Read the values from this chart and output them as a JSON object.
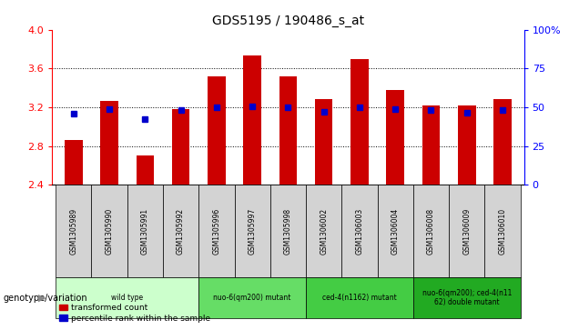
{
  "title": "GDS5195 / 190486_s_at",
  "samples": [
    "GSM1305989",
    "GSM1305990",
    "GSM1305991",
    "GSM1305992",
    "GSM1305996",
    "GSM1305997",
    "GSM1305998",
    "GSM1306002",
    "GSM1306003",
    "GSM1306004",
    "GSM1306008",
    "GSM1306009",
    "GSM1306010"
  ],
  "red_values": [
    2.86,
    3.27,
    2.7,
    3.18,
    3.52,
    3.73,
    3.52,
    3.28,
    3.7,
    3.38,
    3.22,
    3.22,
    3.28
  ],
  "blue_values": [
    3.13,
    3.18,
    3.08,
    3.17,
    3.2,
    3.21,
    3.2,
    3.15,
    3.2,
    3.18,
    3.17,
    3.14,
    3.17
  ],
  "ylim": [
    2.4,
    4.0
  ],
  "y2lim": [
    0,
    100
  ],
  "yticks": [
    2.4,
    2.8,
    3.2,
    3.6,
    4.0
  ],
  "y2ticks": [
    0,
    25,
    50,
    75,
    100
  ],
  "groups": [
    {
      "label": "wild type",
      "indices": [
        0,
        1,
        2,
        3
      ],
      "color": "#ccffcc"
    },
    {
      "label": "nuo-6(qm200) mutant",
      "indices": [
        4,
        5,
        6
      ],
      "color": "#66dd66"
    },
    {
      "label": "ced-4(n1162) mutant",
      "indices": [
        7,
        8,
        9
      ],
      "color": "#44cc44"
    },
    {
      "label": "nuo-6(qm200); ced-4(n11\n62) double mutant",
      "indices": [
        10,
        11,
        12
      ],
      "color": "#22aa22"
    }
  ],
  "bar_bottom": 2.4,
  "bar_color": "#cc0000",
  "dot_color": "#0000cc",
  "legend_label_red": "transformed count",
  "legend_label_blue": "percentile rank within the sample",
  "xlabel_left": "genotype/variation"
}
